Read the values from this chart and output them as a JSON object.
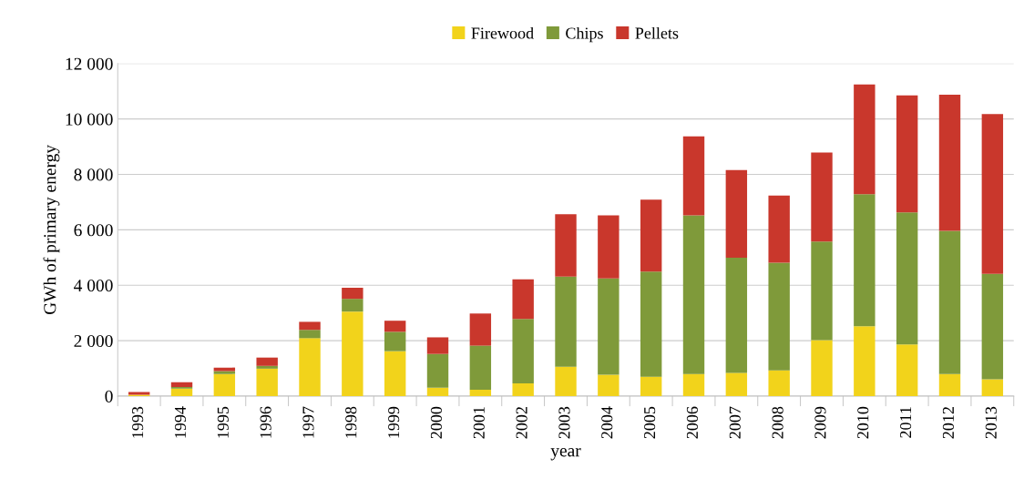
{
  "chart_data": {
    "type": "bar",
    "stacked": true,
    "xlabel": "year",
    "ylabel": "GWh of primary energy",
    "categories": [
      "1993",
      "1994",
      "1995",
      "1996",
      "1997",
      "1998",
      "1999",
      "2000",
      "2001",
      "2002",
      "2003",
      "2004",
      "2005",
      "2006",
      "2007",
      "2008",
      "2009",
      "2010",
      "2011",
      "2012",
      "2013"
    ],
    "series": [
      {
        "name": "Firewood",
        "color": "#f2d31b",
        "values": [
          50,
          270,
          800,
          990,
          2090,
          3050,
          1620,
          300,
          230,
          460,
          1060,
          770,
          700,
          800,
          840,
          930,
          2020,
          2520,
          1860,
          800,
          610
        ]
      },
      {
        "name": "Chips",
        "color": "#7f9a3a",
        "values": [
          null,
          60,
          100,
          100,
          300,
          460,
          700,
          1220,
          1590,
          2320,
          3250,
          3480,
          3790,
          5720,
          4150,
          3880,
          3560,
          4770,
          4770,
          5160,
          3800
        ]
      },
      {
        "name": "Pellets",
        "color": "#c9372c",
        "values": [
          100,
          170,
          130,
          300,
          290,
          400,
          400,
          600,
          1160,
          1430,
          2250,
          2270,
          2600,
          2850,
          3170,
          2430,
          3210,
          3960,
          4220,
          4920,
          5770
        ]
      }
    ],
    "ylim": [
      0,
      12000
    ],
    "yticks": [
      {
        "value": 0,
        "label": "0"
      },
      {
        "value": 2000,
        "label": "2 000"
      },
      {
        "value": 4000,
        "label": "4 000"
      },
      {
        "value": 6000,
        "label": "6 000"
      },
      {
        "value": 8000,
        "label": "8 000"
      },
      {
        "value": 10000,
        "label": "10 000"
      },
      {
        "value": 12000,
        "label": "12 000"
      }
    ],
    "grid": "y",
    "legend": "top"
  }
}
